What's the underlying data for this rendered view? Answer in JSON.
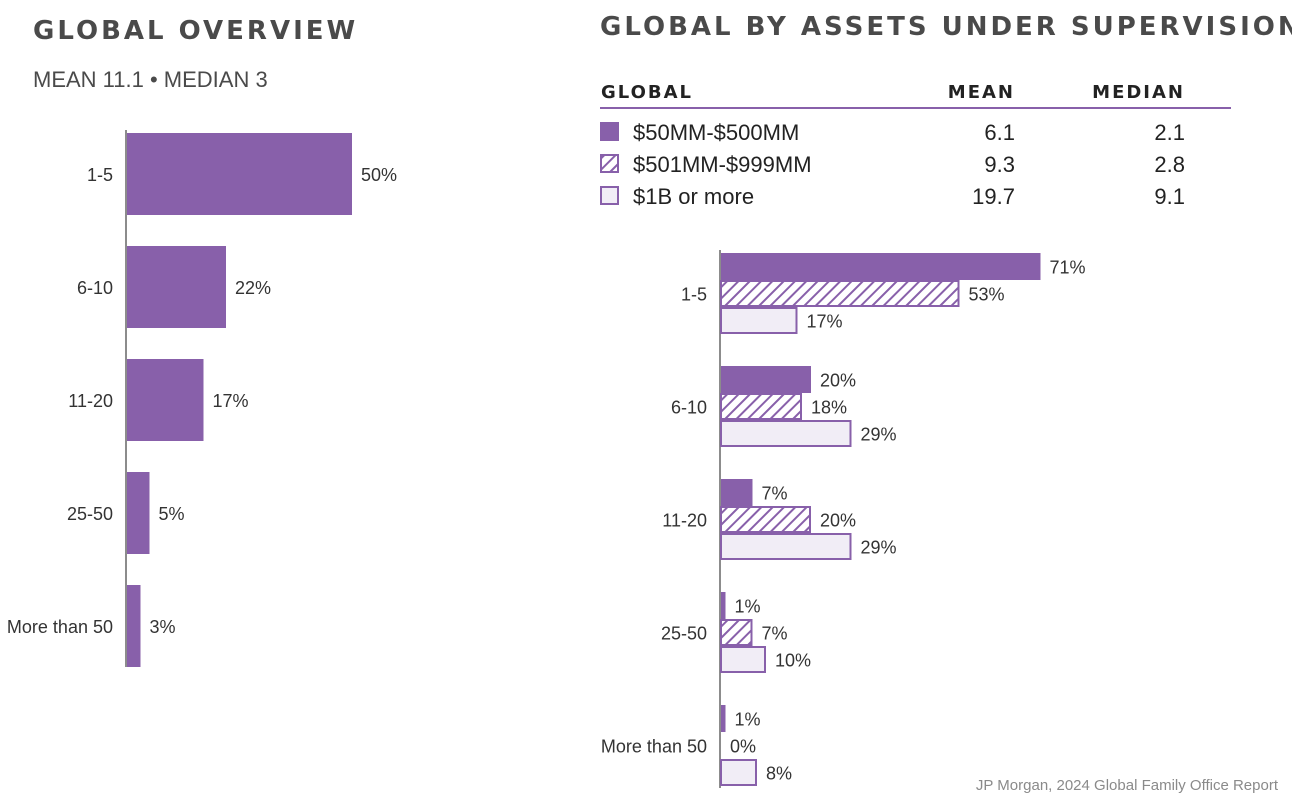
{
  "colors": {
    "purple": "#8860aa",
    "light": "#f1edf6",
    "axis": "#8c8c8c"
  },
  "left": {
    "title": "GLOBAL OVERVIEW",
    "subtitle": "MEAN 11.1 • MEDIAN 3"
  },
  "right": {
    "title": "GLOBAL BY ASSETS UNDER SUPERVISION",
    "table": {
      "headers": [
        "GLOBAL",
        "MEAN",
        "MEDIAN"
      ],
      "rows": [
        {
          "label": "$50MM-$500MM",
          "mean": "6.1",
          "median": "2.1",
          "pattern": "solid"
        },
        {
          "label": "$501MM-$999MM",
          "mean": "9.3",
          "median": "2.8",
          "pattern": "hatch"
        },
        {
          "label": "$1B or more",
          "mean": "19.7",
          "median": "9.1",
          "pattern": "light"
        }
      ]
    }
  },
  "source": "JP Morgan, 2024 Global Family Office Report",
  "chart_data": [
    {
      "type": "bar",
      "orientation": "horizontal",
      "title": "GLOBAL OVERVIEW",
      "subtitle": "MEAN 11.1 • MEDIAN 3",
      "categories": [
        "1-5",
        "6-10",
        "11-20",
        "25-50",
        "More than 50"
      ],
      "values": [
        50,
        22,
        17,
        5,
        3
      ],
      "value_suffix": "%"
    },
    {
      "type": "bar",
      "orientation": "horizontal",
      "title": "GLOBAL BY ASSETS UNDER SUPERVISION",
      "categories": [
        "1-5",
        "6-10",
        "11-20",
        "25-50",
        "More than 50"
      ],
      "series": [
        {
          "name": "$50MM-$500MM",
          "values": [
            71,
            20,
            7,
            1,
            1
          ]
        },
        {
          "name": "$501MM-$999MM",
          "values": [
            53,
            18,
            20,
            7,
            0
          ]
        },
        {
          "name": "$1B or more",
          "values": [
            17,
            29,
            29,
            10,
            8
          ]
        }
      ],
      "value_suffix": "%"
    }
  ]
}
